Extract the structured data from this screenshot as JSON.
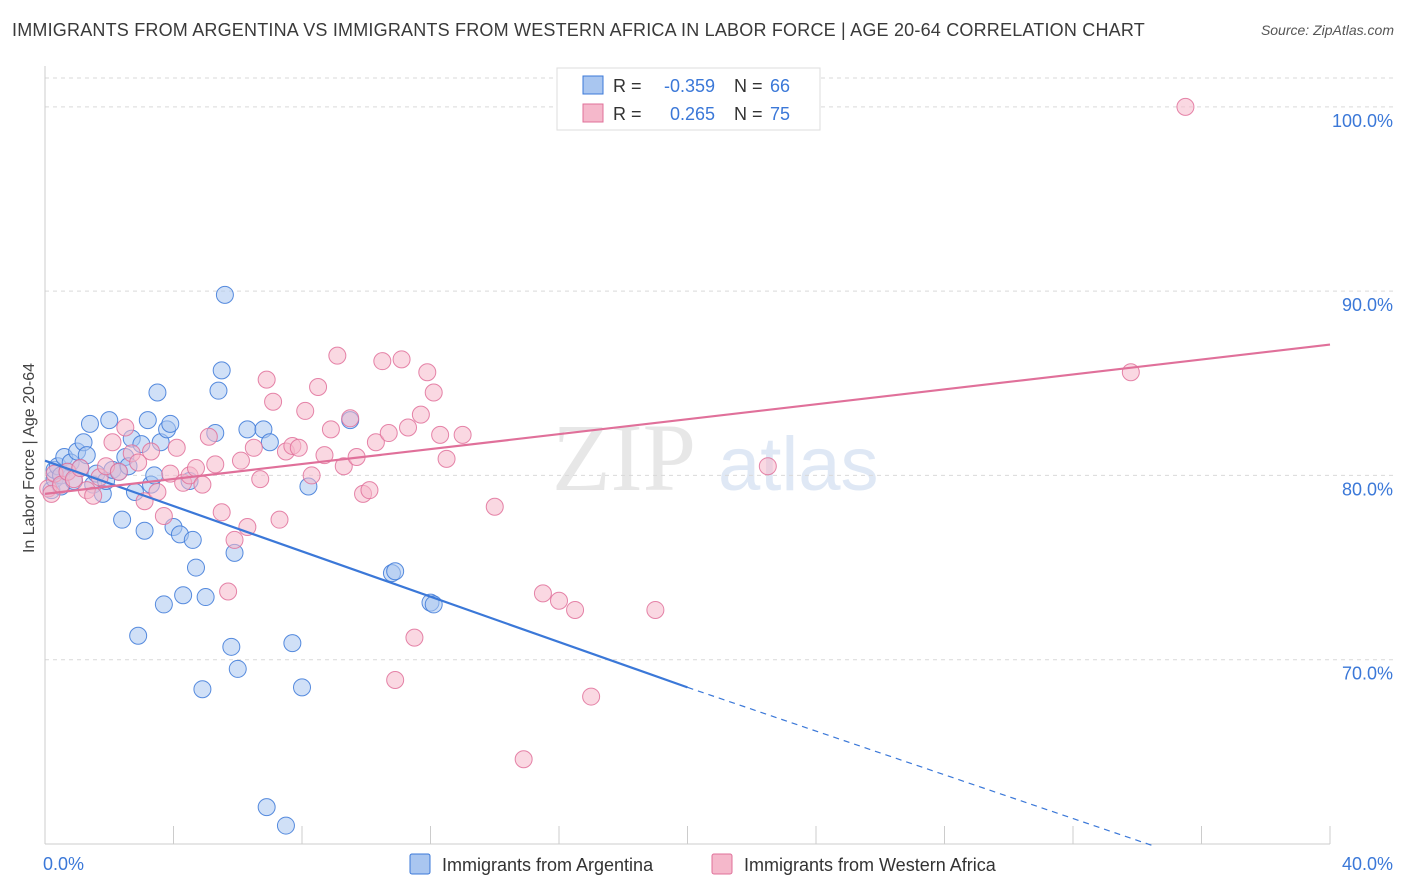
{
  "header": {
    "title": "IMMIGRANTS FROM ARGENTINA VS IMMIGRANTS FROM WESTERN AFRICA IN LABOR FORCE | AGE 20-64 CORRELATION CHART",
    "source": "Source: ZipAtlas.com"
  },
  "watermark": {
    "zip": "ZIP",
    "atlas": "atlas"
  },
  "colors": {
    "blue": "#3b78d8",
    "blue_fill": "#a9c6f0",
    "pink": "#e0709a",
    "pink_fill": "#f5b8cb",
    "tick_label": "#3b78d8",
    "grid": "#d9d9d9"
  },
  "legend": {
    "entries": [
      {
        "r_label": "R =",
        "r_value": "-0.359",
        "n_label": "N =",
        "n_value": "66",
        "color": "blue"
      },
      {
        "r_label": "R =",
        "r_value": "0.265",
        "n_label": "N =",
        "n_value": "75",
        "color": "pink"
      }
    ]
  },
  "chart_data": {
    "type": "scatter",
    "title": "IMMIGRANTS FROM ARGENTINA VS IMMIGRANTS FROM WESTERN AFRICA IN LABOR FORCE | AGE 20-64 CORRELATION CHART",
    "xlabel": "",
    "ylabel": "In Labor Force | Age 20-64",
    "xlim": [
      0,
      40
    ],
    "ylim": [
      60,
      102
    ],
    "x_tick_labels": [
      "0.0%",
      "40.0%"
    ],
    "y_ticks": [
      70,
      80,
      90,
      100
    ],
    "y_tick_labels": [
      "70.0%",
      "80.0%",
      "90.0%",
      "100.0%"
    ],
    "grid": true,
    "legend_position": "top-center",
    "series": [
      {
        "name": "Immigrants from Argentina",
        "color": "blue",
        "trend": {
          "x": [
            0,
            20
          ],
          "y": [
            80.8,
            68.5
          ],
          "dashed_to": [
            34.5,
            59.9
          ]
        },
        "points": [
          [
            0.2,
            79.2
          ],
          [
            0.3,
            79.8
          ],
          [
            0.3,
            80.3
          ],
          [
            0.4,
            80.5
          ],
          [
            0.5,
            80.0
          ],
          [
            0.5,
            79.4
          ],
          [
            0.6,
            81.0
          ],
          [
            0.7,
            80.2
          ],
          [
            0.8,
            80.7
          ],
          [
            0.9,
            79.7
          ],
          [
            1.0,
            81.3
          ],
          [
            1.1,
            80.4
          ],
          [
            1.2,
            81.8
          ],
          [
            1.3,
            81.1
          ],
          [
            1.4,
            82.8
          ],
          [
            1.5,
            79.5
          ],
          [
            1.6,
            80.1
          ],
          [
            1.8,
            79.0
          ],
          [
            1.9,
            79.7
          ],
          [
            2.0,
            83.0
          ],
          [
            2.1,
            80.3
          ],
          [
            2.3,
            80.2
          ],
          [
            2.4,
            77.6
          ],
          [
            2.5,
            81.0
          ],
          [
            2.6,
            80.5
          ],
          [
            2.7,
            82.0
          ],
          [
            2.8,
            79.1
          ],
          [
            2.9,
            71.3
          ],
          [
            3.0,
            81.7
          ],
          [
            3.1,
            77.0
          ],
          [
            3.2,
            83.0
          ],
          [
            3.3,
            79.5
          ],
          [
            3.4,
            80.0
          ],
          [
            3.5,
            84.5
          ],
          [
            3.6,
            81.8
          ],
          [
            3.7,
            73.0
          ],
          [
            3.8,
            82.5
          ],
          [
            3.9,
            82.8
          ],
          [
            4.0,
            77.2
          ],
          [
            4.2,
            76.8
          ],
          [
            4.3,
            73.5
          ],
          [
            4.5,
            79.7
          ],
          [
            4.6,
            76.5
          ],
          [
            4.7,
            75.0
          ],
          [
            4.9,
            68.4
          ],
          [
            5.0,
            73.4
          ],
          [
            5.3,
            82.3
          ],
          [
            5.4,
            84.6
          ],
          [
            5.5,
            85.7
          ],
          [
            5.6,
            89.8
          ],
          [
            5.8,
            70.7
          ],
          [
            5.9,
            75.8
          ],
          [
            6.0,
            69.5
          ],
          [
            6.3,
            82.5
          ],
          [
            6.8,
            82.5
          ],
          [
            6.9,
            62.0
          ],
          [
            7.0,
            81.8
          ],
          [
            7.5,
            61.0
          ],
          [
            7.7,
            70.9
          ],
          [
            8.0,
            68.5
          ],
          [
            8.2,
            79.4
          ],
          [
            9.5,
            83.0
          ],
          [
            10.8,
            74.7
          ],
          [
            10.9,
            74.8
          ],
          [
            12.0,
            73.1
          ],
          [
            12.1,
            73.0
          ]
        ]
      },
      {
        "name": "Immigrants from Western Africa",
        "color": "pink",
        "trend": {
          "x": [
            0,
            40
          ],
          "y": [
            79.0,
            87.1
          ]
        },
        "points": [
          [
            0.1,
            79.3
          ],
          [
            0.2,
            79.0
          ],
          [
            0.3,
            80.1
          ],
          [
            0.5,
            79.5
          ],
          [
            0.7,
            80.2
          ],
          [
            0.9,
            79.8
          ],
          [
            1.1,
            80.4
          ],
          [
            1.3,
            79.2
          ],
          [
            1.5,
            78.9
          ],
          [
            1.7,
            79.9
          ],
          [
            1.9,
            80.5
          ],
          [
            2.1,
            81.8
          ],
          [
            2.3,
            80.2
          ],
          [
            2.5,
            82.6
          ],
          [
            2.7,
            81.2
          ],
          [
            2.9,
            80.7
          ],
          [
            3.1,
            78.6
          ],
          [
            3.3,
            81.3
          ],
          [
            3.5,
            79.1
          ],
          [
            3.7,
            77.8
          ],
          [
            3.9,
            80.1
          ],
          [
            4.1,
            81.5
          ],
          [
            4.3,
            79.6
          ],
          [
            4.5,
            80.0
          ],
          [
            4.7,
            80.4
          ],
          [
            4.9,
            79.5
          ],
          [
            5.1,
            82.1
          ],
          [
            5.3,
            80.6
          ],
          [
            5.5,
            78.0
          ],
          [
            5.7,
            73.7
          ],
          [
            5.9,
            76.5
          ],
          [
            6.1,
            80.8
          ],
          [
            6.3,
            77.2
          ],
          [
            6.5,
            81.5
          ],
          [
            6.7,
            79.8
          ],
          [
            6.9,
            85.2
          ],
          [
            7.1,
            84.0
          ],
          [
            7.3,
            77.6
          ],
          [
            7.5,
            81.3
          ],
          [
            7.7,
            81.6
          ],
          [
            7.9,
            81.5
          ],
          [
            8.1,
            83.5
          ],
          [
            8.3,
            80.0
          ],
          [
            8.5,
            84.8
          ],
          [
            8.7,
            81.1
          ],
          [
            8.9,
            82.5
          ],
          [
            9.1,
            86.5
          ],
          [
            9.3,
            80.5
          ],
          [
            9.5,
            83.1
          ],
          [
            9.7,
            81.0
          ],
          [
            9.9,
            79.0
          ],
          [
            10.1,
            79.2
          ],
          [
            10.3,
            81.8
          ],
          [
            10.5,
            86.2
          ],
          [
            10.7,
            82.3
          ],
          [
            10.9,
            68.9
          ],
          [
            11.1,
            86.3
          ],
          [
            11.3,
            82.6
          ],
          [
            11.5,
            71.2
          ],
          [
            11.7,
            83.3
          ],
          [
            11.9,
            85.6
          ],
          [
            12.1,
            84.5
          ],
          [
            12.3,
            82.2
          ],
          [
            12.5,
            80.9
          ],
          [
            13.0,
            82.2
          ],
          [
            14.0,
            78.3
          ],
          [
            14.9,
            64.6
          ],
          [
            15.5,
            73.6
          ],
          [
            16.0,
            73.2
          ],
          [
            16.5,
            72.7
          ],
          [
            17.0,
            68.0
          ],
          [
            19.0,
            72.7
          ],
          [
            22.5,
            80.5
          ],
          [
            33.8,
            85.6
          ],
          [
            35.5,
            100.0
          ]
        ]
      }
    ]
  },
  "bottom_legend": {
    "series_a": "Immigrants from Argentina",
    "series_b": "Immigrants from Western Africa"
  }
}
